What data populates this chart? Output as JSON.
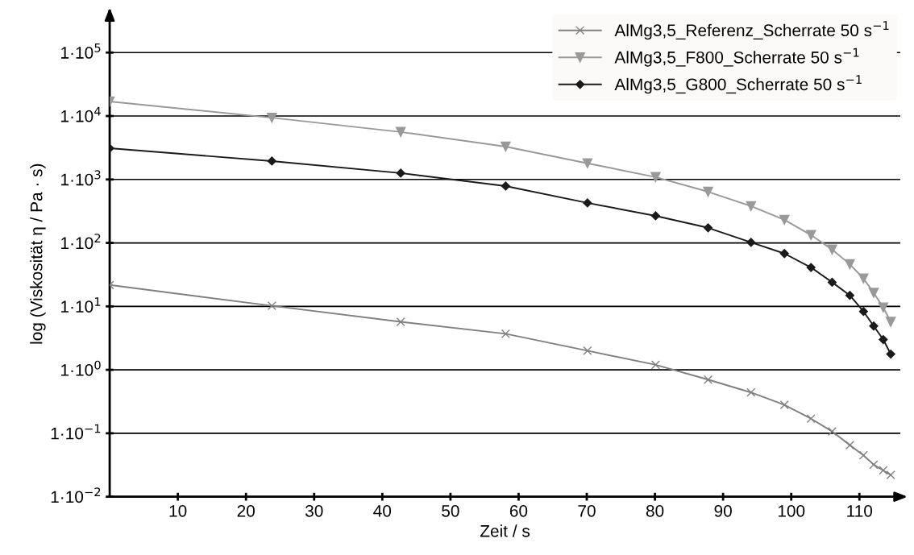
{
  "chart_data": {
    "type": "line",
    "xlabel": "Zeit / s",
    "ylabel": "log (Viskosität η / Pa · s)",
    "x": [
      0,
      23.8,
      42.7,
      58.1,
      70.1,
      80.1,
      87.8,
      94.1,
      99.0,
      102.9,
      106.0,
      108.6,
      110.6,
      112.1,
      113.5,
      114.6
    ],
    "series": [
      {
        "name": "AlMg3,5_Referenz_Scherrate 50 s$^{−1}$",
        "color": "#808080",
        "marker": "cross",
        "values": [
          21.7,
          10.2,
          5.7,
          3.7,
          2.0,
          1.2,
          0.7,
          0.44,
          0.28,
          0.17,
          0.107,
          0.065,
          0.045,
          0.032,
          0.026,
          0.022
        ]
      },
      {
        "name": "AlMg3,5_F800_Scherrate 50 s$^{−1}$",
        "color": "#999999",
        "marker": "triangle",
        "values": [
          16900,
          9400,
          5600,
          3300,
          1800,
          1090,
          640,
          380,
          231,
          133,
          78.5,
          46,
          27.5,
          16.3,
          9.6,
          5.7
        ]
      },
      {
        "name": "AlMg3,5_G800_Scherrate 50 s$^{−1}$",
        "color": "#1a1a1a",
        "marker": "diamond",
        "values": [
          3100,
          1950,
          1260,
          787,
          427,
          267,
          173,
          102,
          68,
          41,
          24,
          14.9,
          8.3,
          4.9,
          3.0,
          1.77
        ]
      }
    ],
    "log": "y",
    "xlim": [
      0,
      116
    ],
    "ylim": [
      0.01,
      450000
    ],
    "xticks": [
      10,
      20,
      30,
      40,
      50,
      60,
      70,
      80,
      90,
      100,
      110
    ],
    "yticks": [
      {
        "value": 0.01,
        "label": "1·10$^{−2}$"
      },
      {
        "value": 0.1,
        "label": "1·10$^{−1}$"
      },
      {
        "value": 1,
        "label": "1·10$^{0}$"
      },
      {
        "value": 10,
        "label": "1·10$^{1}$"
      },
      {
        "value": 100,
        "label": "1·10$^{2}$"
      },
      {
        "value": 1000,
        "label": "1·10$^{3}$"
      },
      {
        "value": 10000,
        "label": "1·10$^{4}$"
      },
      {
        "value": 100000,
        "label": "1·10$^{5}$"
      }
    ],
    "grid": "y",
    "legend": "top right",
    "line_style": "solid"
  }
}
